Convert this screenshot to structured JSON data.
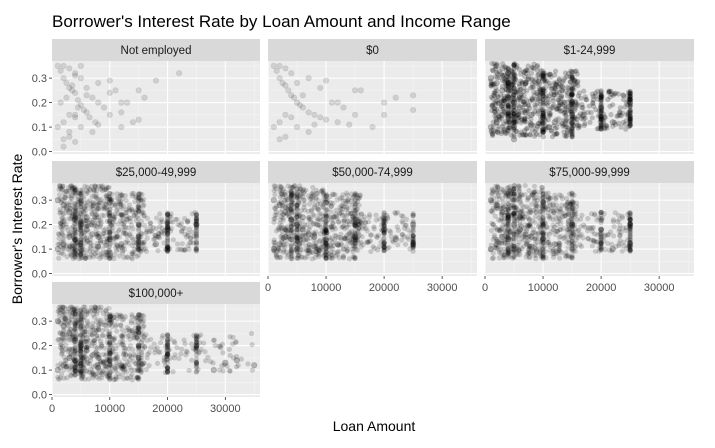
{
  "chart_data": {
    "type": "scatter",
    "title": "Borrower's Interest Rate by Loan Amount and Income Range",
    "xlabel": "Loan Amount",
    "ylabel": "Borrower's Interest Rate",
    "xlim": [
      0,
      36000
    ],
    "ylim": [
      -0.01,
      0.37
    ],
    "x_ticks": [
      0,
      10000,
      20000,
      30000
    ],
    "x_tick_labels": [
      "0",
      "10000",
      "20000",
      "30000"
    ],
    "y_ticks": [
      0.0,
      0.1,
      0.2,
      0.3
    ],
    "y_tick_labels": [
      "0.0",
      "0.1",
      "0.2",
      "0.3"
    ],
    "grid": true,
    "theme": "grey panels, white gridlines, faceted 3x3 (7 panels)",
    "point_color": "#000000",
    "point_alpha": 0.08,
    "panel_color": "#ebebeb",
    "strip_color": "#d9d9d9",
    "facets": [
      {
        "label": "Not employed",
        "x": [
          1000,
          1500,
          2000,
          2500,
          3000,
          3500,
          4000,
          4000,
          4500,
          5000,
          5000,
          5500,
          6000,
          6500,
          7000,
          7500,
          8000,
          9000,
          10000,
          11000,
          12000,
          13000,
          15000,
          18000,
          22000,
          1000,
          2000,
          3000,
          4000,
          5000,
          6000,
          7000,
          8000,
          10000,
          12000,
          15000,
          2000,
          3000,
          4000,
          5000,
          2000,
          3000,
          4000,
          1500,
          2500,
          3500,
          4500,
          2000,
          3000,
          4000,
          6000,
          8000,
          10000,
          12000,
          14000,
          16000
        ],
        "y": [
          0.35,
          0.33,
          0.3,
          0.28,
          0.26,
          0.25,
          0.24,
          0.31,
          0.21,
          0.19,
          0.3,
          0.17,
          0.16,
          0.14,
          0.22,
          0.12,
          0.2,
          0.18,
          0.15,
          0.25,
          0.1,
          0.2,
          0.13,
          0.29,
          0.32,
          0.1,
          0.12,
          0.15,
          0.14,
          0.1,
          0.23,
          0.08,
          0.11,
          0.29,
          0.2,
          0.25,
          0.35,
          0.34,
          0.32,
          0.35,
          0.05,
          0.06,
          0.04,
          0.2,
          0.22,
          0.27,
          0.18,
          0.02,
          0.08,
          0.15,
          0.26,
          0.28,
          0.24,
          0.16,
          0.12,
          0.22
        ]
      },
      {
        "label": "$0",
        "x": [
          1000,
          1500,
          2000,
          2500,
          3000,
          3500,
          4000,
          4500,
          5000,
          5500,
          6000,
          7000,
          8000,
          9000,
          10000,
          11000,
          12000,
          13000,
          14000,
          15000,
          16000,
          18000,
          20000,
          22000,
          25000,
          1000,
          2000,
          3000,
          4000,
          5000,
          6000,
          7000,
          8000,
          10000,
          12000,
          15000,
          20000,
          25000,
          2000,
          3000,
          4000,
          2000,
          3000,
          5000,
          7000,
          9000
        ],
        "y": [
          0.35,
          0.33,
          0.3,
          0.28,
          0.27,
          0.25,
          0.23,
          0.22,
          0.2,
          0.19,
          0.18,
          0.16,
          0.15,
          0.14,
          0.13,
          0.2,
          0.12,
          0.18,
          0.11,
          0.15,
          0.25,
          0.1,
          0.2,
          0.22,
          0.23,
          0.1,
          0.12,
          0.15,
          0.14,
          0.1,
          0.23,
          0.08,
          0.11,
          0.29,
          0.2,
          0.25,
          0.15,
          0.17,
          0.35,
          0.34,
          0.32,
          0.05,
          0.06,
          0.28,
          0.3,
          0.26
        ]
      },
      {
        "label": "$1-24,999",
        "x": [
          1000,
          2000,
          3000,
          4000,
          5000,
          6000,
          7000,
          8000,
          10000,
          12000,
          15000,
          20000,
          25000,
          1000,
          2000,
          3000,
          4000,
          5000,
          6000,
          8000,
          10000,
          15000,
          2000,
          3000,
          4000,
          5000,
          7000,
          9000,
          11000,
          13000,
          17000,
          22000
        ],
        "y": [
          0.3,
          0.28,
          0.25,
          0.22,
          0.2,
          0.18,
          0.16,
          0.15,
          0.14,
          0.12,
          0.15,
          0.18,
          0.2,
          0.1,
          0.12,
          0.15,
          0.14,
          0.1,
          0.23,
          0.11,
          0.29,
          0.2,
          0.35,
          0.34,
          0.32,
          0.05,
          0.28,
          0.24,
          0.1,
          0.2,
          0.15,
          0.12
        ]
      },
      {
        "label": "$25,000-49,999",
        "x": [
          1000,
          2000,
          3000,
          4000,
          5000,
          6000,
          7000,
          8000,
          10000,
          12000,
          15000,
          20000,
          25000,
          1000,
          2000,
          3000,
          4000,
          5000,
          6000,
          8000,
          10000,
          15000,
          18000,
          20000
        ],
        "y": [
          0.3,
          0.28,
          0.25,
          0.22,
          0.2,
          0.18,
          0.16,
          0.15,
          0.14,
          0.12,
          0.15,
          0.18,
          0.2,
          0.1,
          0.12,
          0.15,
          0.14,
          0.1,
          0.23,
          0.11,
          0.29,
          0.2,
          0.12,
          0.1
        ]
      },
      {
        "label": "$50,000-74,999",
        "x": [
          1000,
          2000,
          3000,
          4000,
          5000,
          6000,
          7000,
          8000,
          10000,
          12000,
          15000,
          20000,
          25000,
          1000,
          2000,
          3000,
          4000,
          5000,
          6000,
          8000,
          10000,
          15000,
          22000,
          25000
        ],
        "y": [
          0.3,
          0.28,
          0.25,
          0.22,
          0.2,
          0.18,
          0.16,
          0.15,
          0.14,
          0.12,
          0.15,
          0.18,
          0.2,
          0.1,
          0.12,
          0.15,
          0.14,
          0.1,
          0.23,
          0.11,
          0.29,
          0.2,
          0.14,
          0.12
        ]
      },
      {
        "label": "$75,000-99,999",
        "x": [
          1000,
          2000,
          3000,
          4000,
          5000,
          6000,
          7000,
          8000,
          10000,
          12000,
          15000,
          20000,
          25000,
          1000,
          2000,
          3000,
          4000,
          5000,
          6000,
          8000,
          10000,
          15000,
          22000,
          25000
        ],
        "y": [
          0.3,
          0.28,
          0.25,
          0.22,
          0.2,
          0.18,
          0.16,
          0.15,
          0.14,
          0.12,
          0.15,
          0.18,
          0.2,
          0.1,
          0.12,
          0.15,
          0.14,
          0.1,
          0.23,
          0.11,
          0.29,
          0.2,
          0.1,
          0.12
        ]
      },
      {
        "label": "$100,000+",
        "x": [
          1000,
          2000,
          3000,
          4000,
          5000,
          6000,
          7000,
          8000,
          10000,
          12000,
          15000,
          20000,
          25000,
          30000,
          35000,
          1000,
          2000,
          3000,
          4000,
          5000,
          6000,
          8000,
          10000,
          15000,
          28000,
          32000
        ],
        "y": [
          0.3,
          0.28,
          0.25,
          0.22,
          0.2,
          0.18,
          0.16,
          0.15,
          0.14,
          0.12,
          0.15,
          0.18,
          0.2,
          0.13,
          0.12,
          0.1,
          0.12,
          0.15,
          0.14,
          0.1,
          0.23,
          0.11,
          0.29,
          0.2,
          0.1,
          0.14
        ]
      }
    ]
  }
}
